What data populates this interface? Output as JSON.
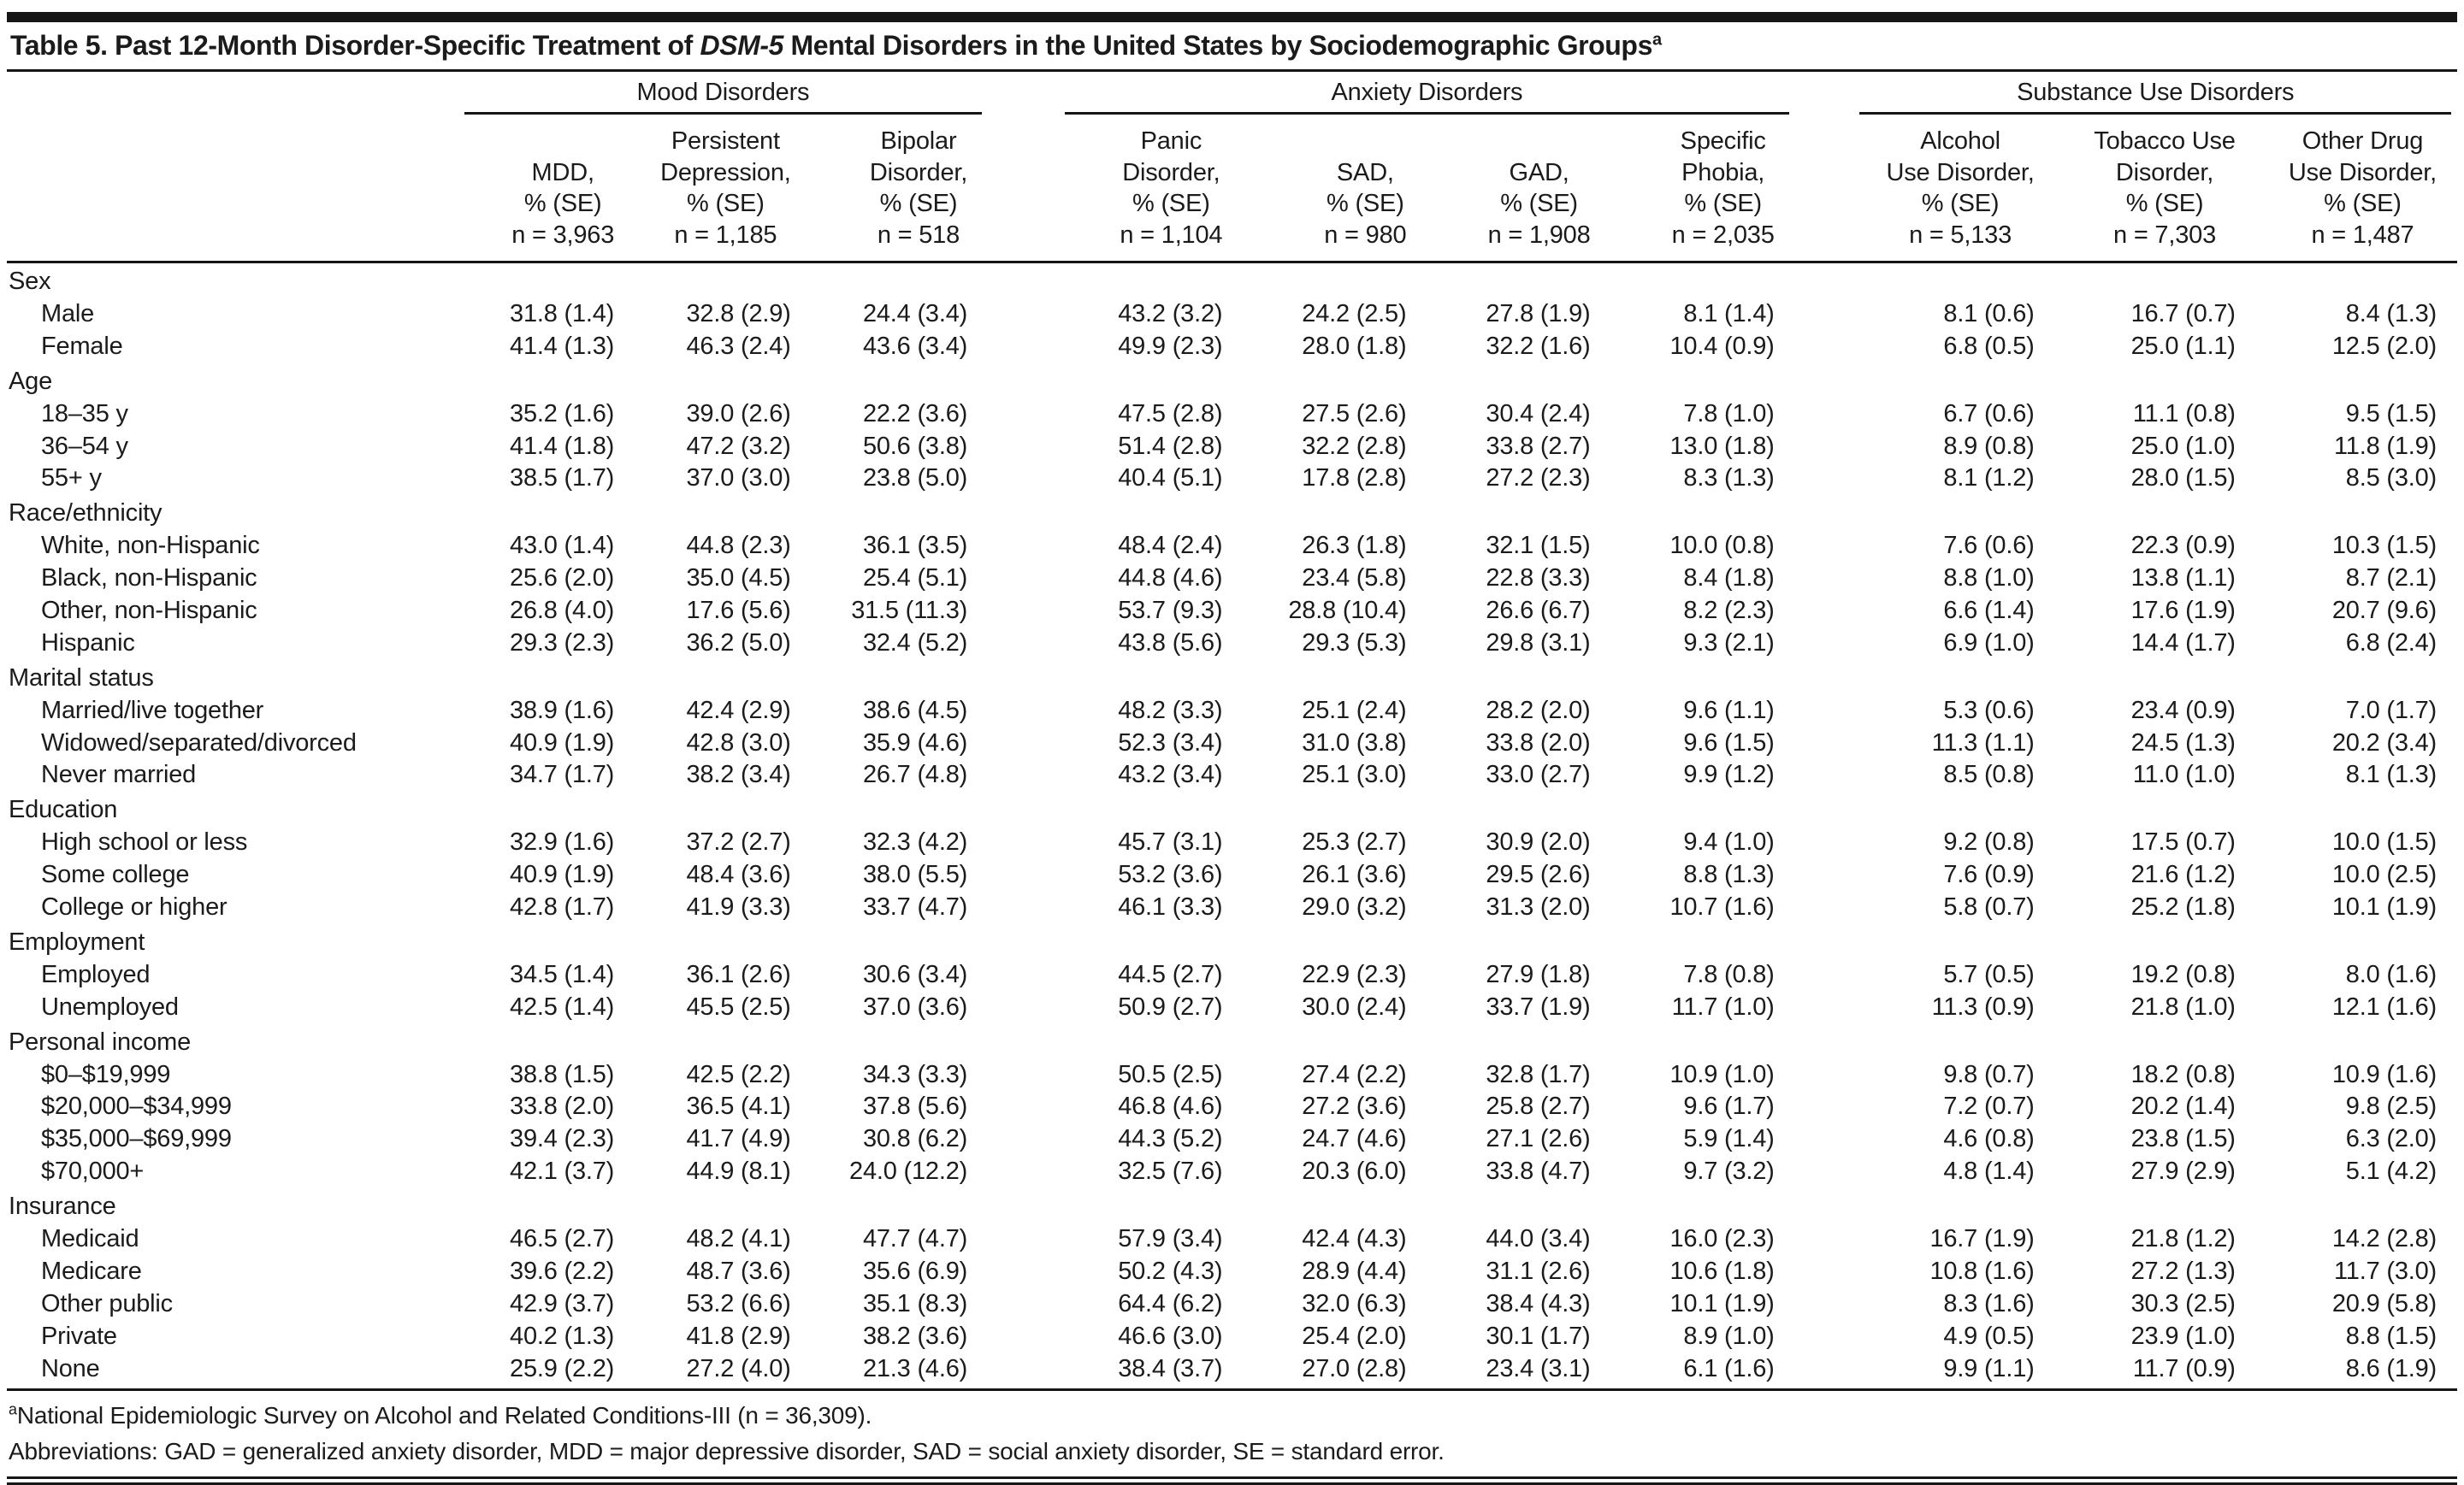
{
  "ink_color": "#1b1b1b",
  "table": {
    "title": {
      "pre": "Table 5. Past 12-Month Disorder-Specific Treatment of ",
      "italic": "DSM-5",
      "post": " Mental Disorders in the United States by Sociodemographic Groups",
      "sup": "a"
    },
    "groups": [
      {
        "label": "Mood Disorders",
        "span": 3
      },
      {
        "label": "Anxiety Disorders",
        "span": 4
      },
      {
        "label": "Substance Use Disorders",
        "span": 3
      }
    ],
    "columns": [
      "MDD,\n% (SE)\nn = 3,963",
      "Persistent\nDepression,\n% (SE)\nn = 1,185",
      "Bipolar\nDisorder,\n% (SE)\nn = 518",
      "Panic\nDisorder,\n% (SE)\nn = 1,104",
      "SAD,\n% (SE)\nn = 980",
      "GAD,\n% (SE)\nn = 1,908",
      "Specific\nPhobia,\n% (SE)\nn = 2,035",
      "Alcohol\nUse Disorder,\n% (SE)\nn = 5,133",
      "Tobacco Use\nDisorder,\n% (SE)\nn = 7,303",
      "Other Drug\nUse Disorder,\n% (SE)\nn = 1,487"
    ],
    "sections": [
      {
        "label": "Sex",
        "rows": [
          {
            "label": "Male",
            "values": [
              "31.8 (1.4)",
              "32.8 (2.9)",
              "24.4 (3.4)",
              "43.2 (3.2)",
              "24.2 (2.5)",
              "27.8 (1.9)",
              "8.1 (1.4)",
              "8.1 (0.6)",
              "16.7 (0.7)",
              "8.4 (1.3)"
            ]
          },
          {
            "label": "Female",
            "values": [
              "41.4 (1.3)",
              "46.3 (2.4)",
              "43.6 (3.4)",
              "49.9 (2.3)",
              "28.0 (1.8)",
              "32.2 (1.6)",
              "10.4 (0.9)",
              "6.8 (0.5)",
              "25.0 (1.1)",
              "12.5 (2.0)"
            ]
          }
        ]
      },
      {
        "label": "Age",
        "rows": [
          {
            "label": "18–35 y",
            "values": [
              "35.2 (1.6)",
              "39.0 (2.6)",
              "22.2 (3.6)",
              "47.5 (2.8)",
              "27.5 (2.6)",
              "30.4 (2.4)",
              "7.8 (1.0)",
              "6.7 (0.6)",
              "11.1 (0.8)",
              "9.5 (1.5)"
            ]
          },
          {
            "label": "36–54 y",
            "values": [
              "41.4 (1.8)",
              "47.2 (3.2)",
              "50.6 (3.8)",
              "51.4 (2.8)",
              "32.2 (2.8)",
              "33.8 (2.7)",
              "13.0 (1.8)",
              "8.9 (0.8)",
              "25.0 (1.0)",
              "11.8 (1.9)"
            ]
          },
          {
            "label": "55+ y",
            "values": [
              "38.5 (1.7)",
              "37.0 (3.0)",
              "23.8 (5.0)",
              "40.4 (5.1)",
              "17.8 (2.8)",
              "27.2 (2.3)",
              "8.3 (1.3)",
              "8.1 (1.2)",
              "28.0 (1.5)",
              "8.5 (3.0)"
            ]
          }
        ]
      },
      {
        "label": "Race/ethnicity",
        "rows": [
          {
            "label": "White, non-Hispanic",
            "values": [
              "43.0 (1.4)",
              "44.8 (2.3)",
              "36.1 (3.5)",
              "48.4 (2.4)",
              "26.3 (1.8)",
              "32.1 (1.5)",
              "10.0 (0.8)",
              "7.6 (0.6)",
              "22.3 (0.9)",
              "10.3 (1.5)"
            ]
          },
          {
            "label": "Black, non-Hispanic",
            "values": [
              "25.6 (2.0)",
              "35.0 (4.5)",
              "25.4 (5.1)",
              "44.8 (4.6)",
              "23.4 (5.8)",
              "22.8 (3.3)",
              "8.4 (1.8)",
              "8.8 (1.0)",
              "13.8 (1.1)",
              "8.7 (2.1)"
            ]
          },
          {
            "label": "Other, non-Hispanic",
            "values": [
              "26.8 (4.0)",
              "17.6 (5.6)",
              "31.5 (11.3)",
              "53.7 (9.3)",
              "28.8 (10.4)",
              "26.6 (6.7)",
              "8.2 (2.3)",
              "6.6 (1.4)",
              "17.6 (1.9)",
              "20.7 (9.6)"
            ]
          },
          {
            "label": "Hispanic",
            "values": [
              "29.3 (2.3)",
              "36.2 (5.0)",
              "32.4 (5.2)",
              "43.8 (5.6)",
              "29.3 (5.3)",
              "29.8 (3.1)",
              "9.3 (2.1)",
              "6.9 (1.0)",
              "14.4 (1.7)",
              "6.8 (2.4)"
            ]
          }
        ]
      },
      {
        "label": "Marital status",
        "rows": [
          {
            "label": "Married/live together",
            "values": [
              "38.9 (1.6)",
              "42.4 (2.9)",
              "38.6 (4.5)",
              "48.2 (3.3)",
              "25.1 (2.4)",
              "28.2 (2.0)",
              "9.6 (1.1)",
              "5.3 (0.6)",
              "23.4 (0.9)",
              "7.0 (1.7)"
            ]
          },
          {
            "label": "Widowed/separated/divorced",
            "values": [
              "40.9 (1.9)",
              "42.8 (3.0)",
              "35.9 (4.6)",
              "52.3 (3.4)",
              "31.0 (3.8)",
              "33.8 (2.0)",
              "9.6 (1.5)",
              "11.3 (1.1)",
              "24.5 (1.3)",
              "20.2 (3.4)"
            ]
          },
          {
            "label": "Never married",
            "values": [
              "34.7 (1.7)",
              "38.2 (3.4)",
              "26.7 (4.8)",
              "43.2 (3.4)",
              "25.1 (3.0)",
              "33.0 (2.7)",
              "9.9 (1.2)",
              "8.5 (0.8)",
              "11.0 (1.0)",
              "8.1 (1.3)"
            ]
          }
        ]
      },
      {
        "label": "Education",
        "rows": [
          {
            "label": "High school or less",
            "values": [
              "32.9 (1.6)",
              "37.2 (2.7)",
              "32.3 (4.2)",
              "45.7 (3.1)",
              "25.3 (2.7)",
              "30.9 (2.0)",
              "9.4 (1.0)",
              "9.2 (0.8)",
              "17.5 (0.7)",
              "10.0 (1.5)"
            ]
          },
          {
            "label": "Some college",
            "values": [
              "40.9 (1.9)",
              "48.4 (3.6)",
              "38.0 (5.5)",
              "53.2 (3.6)",
              "26.1 (3.6)",
              "29.5 (2.6)",
              "8.8 (1.3)",
              "7.6 (0.9)",
              "21.6 (1.2)",
              "10.0 (2.5)"
            ]
          },
          {
            "label": "College or higher",
            "values": [
              "42.8 (1.7)",
              "41.9 (3.3)",
              "33.7 (4.7)",
              "46.1 (3.3)",
              "29.0 (3.2)",
              "31.3 (2.0)",
              "10.7 (1.6)",
              "5.8 (0.7)",
              "25.2 (1.8)",
              "10.1 (1.9)"
            ]
          }
        ]
      },
      {
        "label": "Employment",
        "rows": [
          {
            "label": "Employed",
            "values": [
              "34.5 (1.4)",
              "36.1 (2.6)",
              "30.6 (3.4)",
              "44.5 (2.7)",
              "22.9 (2.3)",
              "27.9 (1.8)",
              "7.8 (0.8)",
              "5.7 (0.5)",
              "19.2 (0.8)",
              "8.0 (1.6)"
            ]
          },
          {
            "label": "Unemployed",
            "values": [
              "42.5 (1.4)",
              "45.5 (2.5)",
              "37.0 (3.6)",
              "50.9 (2.7)",
              "30.0 (2.4)",
              "33.7 (1.9)",
              "11.7 (1.0)",
              "11.3 (0.9)",
              "21.8 (1.0)",
              "12.1 (1.6)"
            ]
          }
        ]
      },
      {
        "label": "Personal income",
        "rows": [
          {
            "label": "$0–$19,999",
            "values": [
              "38.8 (1.5)",
              "42.5 (2.2)",
              "34.3 (3.3)",
              "50.5 (2.5)",
              "27.4 (2.2)",
              "32.8 (1.7)",
              "10.9 (1.0)",
              "9.8 (0.7)",
              "18.2 (0.8)",
              "10.9 (1.6)"
            ]
          },
          {
            "label": "$20,000–$34,999",
            "values": [
              "33.8 (2.0)",
              "36.5 (4.1)",
              "37.8 (5.6)",
              "46.8 (4.6)",
              "27.2 (3.6)",
              "25.8 (2.7)",
              "9.6 (1.7)",
              "7.2 (0.7)",
              "20.2 (1.4)",
              "9.8 (2.5)"
            ]
          },
          {
            "label": "$35,000–$69,999",
            "values": [
              "39.4 (2.3)",
              "41.7 (4.9)",
              "30.8 (6.2)",
              "44.3 (5.2)",
              "24.7 (4.6)",
              "27.1 (2.6)",
              "5.9 (1.4)",
              "4.6 (0.8)",
              "23.8 (1.5)",
              "6.3 (2.0)"
            ]
          },
          {
            "label": "$70,000+",
            "values": [
              "42.1 (3.7)",
              "44.9 (8.1)",
              "24.0 (12.2)",
              "32.5 (7.6)",
              "20.3 (6.0)",
              "33.8 (4.7)",
              "9.7 (3.2)",
              "4.8 (1.4)",
              "27.9 (2.9)",
              "5.1 (4.2)"
            ]
          }
        ]
      },
      {
        "label": "Insurance",
        "rows": [
          {
            "label": "Medicaid",
            "values": [
              "46.5 (2.7)",
              "48.2 (4.1)",
              "47.7 (4.7)",
              "57.9 (3.4)",
              "42.4 (4.3)",
              "44.0 (3.4)",
              "16.0 (2.3)",
              "16.7 (1.9)",
              "21.8 (1.2)",
              "14.2 (2.8)"
            ]
          },
          {
            "label": "Medicare",
            "values": [
              "39.6 (2.2)",
              "48.7 (3.6)",
              "35.6 (6.9)",
              "50.2 (4.3)",
              "28.9 (4.4)",
              "31.1 (2.6)",
              "10.6 (1.8)",
              "10.8 (1.6)",
              "27.2 (1.3)",
              "11.7 (3.0)"
            ]
          },
          {
            "label": "Other public",
            "values": [
              "42.9 (3.7)",
              "53.2 (6.6)",
              "35.1 (8.3)",
              "64.4 (6.2)",
              "32.0 (6.3)",
              "38.4 (4.3)",
              "10.1 (1.9)",
              "8.3 (1.6)",
              "30.3 (2.5)",
              "20.9 (5.8)"
            ]
          },
          {
            "label": "Private",
            "values": [
              "40.2 (1.3)",
              "41.8 (2.9)",
              "38.2 (3.6)",
              "46.6 (3.0)",
              "25.4 (2.0)",
              "30.1 (1.7)",
              "8.9 (1.0)",
              "4.9 (0.5)",
              "23.9 (1.0)",
              "8.8 (1.5)"
            ]
          },
          {
            "label": "None",
            "values": [
              "25.9 (2.2)",
              "27.2 (4.0)",
              "21.3 (4.6)",
              "38.4 (3.7)",
              "27.0 (2.8)",
              "23.4 (3.1)",
              "6.1 (1.6)",
              "9.9 (1.1)",
              "11.7 (0.9)",
              "8.6 (1.9)"
            ]
          }
        ]
      }
    ],
    "footnotes": {
      "source_sup": "a",
      "source": "National Epidemiologic Survey on Alcohol and Related Conditions-III (n = 36,309).",
      "abbreviations": "Abbreviations: GAD = generalized anxiety disorder, MDD = major depressive disorder, SAD = social anxiety disorder, SE = standard error."
    }
  }
}
